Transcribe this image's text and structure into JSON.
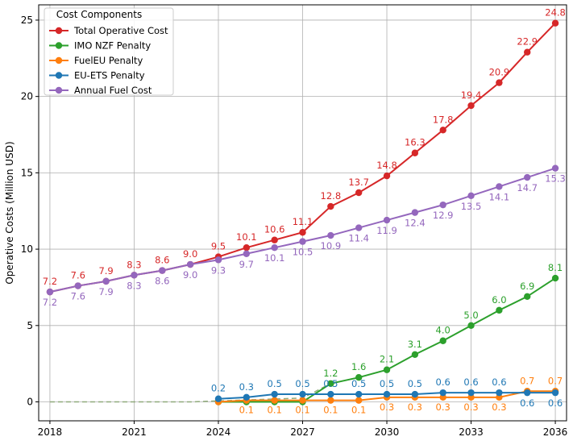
{
  "chart_data": {
    "type": "line",
    "title": "",
    "xlabel": "",
    "ylabel": "Operative Costs (Million USD)",
    "xlim": [
      2017.6,
      2036.4
    ],
    "ylim": [
      -1.24,
      26.0
    ],
    "grid": true,
    "legend_placement": "top-left",
    "legend_title": "Cost Components",
    "x_ticks": [
      2018,
      2021,
      2024,
      2027,
      2030,
      2033,
      2036
    ],
    "y_ticks": [
      0,
      5,
      10,
      15,
      20,
      25
    ],
    "series": [
      {
        "name": "Total Operative Cost",
        "color": "#d62728",
        "x": [
          2018,
          2019,
          2020,
          2021,
          2022,
          2023,
          2024,
          2025,
          2026,
          2027,
          2028,
          2029,
          2030,
          2031,
          2032,
          2033,
          2034,
          2035,
          2036
        ],
        "values": [
          7.2,
          7.6,
          7.9,
          8.3,
          8.6,
          9.0,
          9.5,
          10.1,
          10.6,
          11.1,
          12.8,
          13.7,
          14.8,
          16.3,
          17.8,
          19.4,
          20.9,
          22.9,
          24.8
        ],
        "labels": [
          "7.2",
          "7.6",
          "7.9",
          "8.3",
          "8.6",
          "9.0",
          "9.5",
          "10.1",
          "10.6",
          "11.1",
          "12.8",
          "13.7",
          "14.8",
          "16.3",
          "17.8",
          "19.4",
          "20.9",
          "22.9",
          "24.8"
        ],
        "label_position": "above"
      },
      {
        "name": "IMO NZF Penalty",
        "color": "#2ca02c",
        "x": [
          2024,
          2025,
          2026,
          2027,
          2028,
          2029,
          2030,
          2031,
          2032,
          2033,
          2034,
          2035,
          2036
        ],
        "values": [
          0.0,
          0.0,
          0.0,
          0.0,
          1.2,
          1.6,
          2.1,
          3.1,
          4.0,
          5.0,
          6.0,
          6.9,
          8.1
        ],
        "labels": [
          "",
          "",
          "",
          "",
          "1.2",
          "1.6",
          "2.1",
          "3.1",
          "4.0",
          "5.0",
          "6.0",
          "6.9",
          "8.1"
        ],
        "label_position": "above"
      },
      {
        "name": "FuelEU Penalty",
        "color": "#ff7f0e",
        "x": [
          2024,
          2025,
          2026,
          2027,
          2028,
          2029,
          2030,
          2031,
          2032,
          2033,
          2034,
          2035,
          2036
        ],
        "values": [
          0.0,
          0.1,
          0.1,
          0.1,
          0.1,
          0.1,
          0.3,
          0.3,
          0.3,
          0.3,
          0.3,
          0.7,
          0.7
        ],
        "labels": [
          "",
          "0.1",
          "0.1",
          "0.1",
          "0.1",
          "0.1",
          "0.3",
          "0.3",
          "0.3",
          "0.3",
          "0.3",
          "0.7",
          "0.7"
        ],
        "label_position": "mixed"
      },
      {
        "name": "EU-ETS Penalty",
        "color": "#1f77b4",
        "x": [
          2024,
          2025,
          2026,
          2027,
          2028,
          2029,
          2030,
          2031,
          2032,
          2033,
          2034,
          2035,
          2036
        ],
        "values": [
          0.2,
          0.3,
          0.5,
          0.5,
          0.5,
          0.5,
          0.5,
          0.5,
          0.6,
          0.6,
          0.6,
          0.6,
          0.6
        ],
        "labels": [
          "0.2",
          "0.3",
          "0.5",
          "0.5",
          "0.5",
          "0.5",
          "0.5",
          "0.5",
          "0.6",
          "0.6",
          "0.6",
          "0.6",
          "0.6"
        ],
        "label_position": "mixed"
      },
      {
        "name": "Annual Fuel Cost",
        "color": "#9467bd",
        "x": [
          2018,
          2019,
          2020,
          2021,
          2022,
          2023,
          2024,
          2025,
          2026,
          2027,
          2028,
          2029,
          2030,
          2031,
          2032,
          2033,
          2034,
          2035,
          2036
        ],
        "values": [
          7.2,
          7.6,
          7.9,
          8.3,
          8.6,
          9.0,
          9.3,
          9.7,
          10.1,
          10.5,
          10.9,
          11.4,
          11.9,
          12.4,
          12.9,
          13.5,
          14.1,
          14.7,
          15.3
        ],
        "labels": [
          "7.2",
          "7.6",
          "7.9",
          "8.3",
          "8.6",
          "9.0",
          "9.3",
          "9.7",
          "10.1",
          "10.5",
          "10.9",
          "11.4",
          "11.9",
          "12.4",
          "12.9",
          "13.5",
          "14.1",
          "14.7",
          "15.3"
        ],
        "label_position": "below"
      }
    ],
    "baseline": {
      "style": "dashed",
      "x": [
        2018,
        2023,
        2027,
        2028
      ],
      "values": [
        0.0,
        0.0,
        0.25,
        1.2
      ]
    }
  }
}
